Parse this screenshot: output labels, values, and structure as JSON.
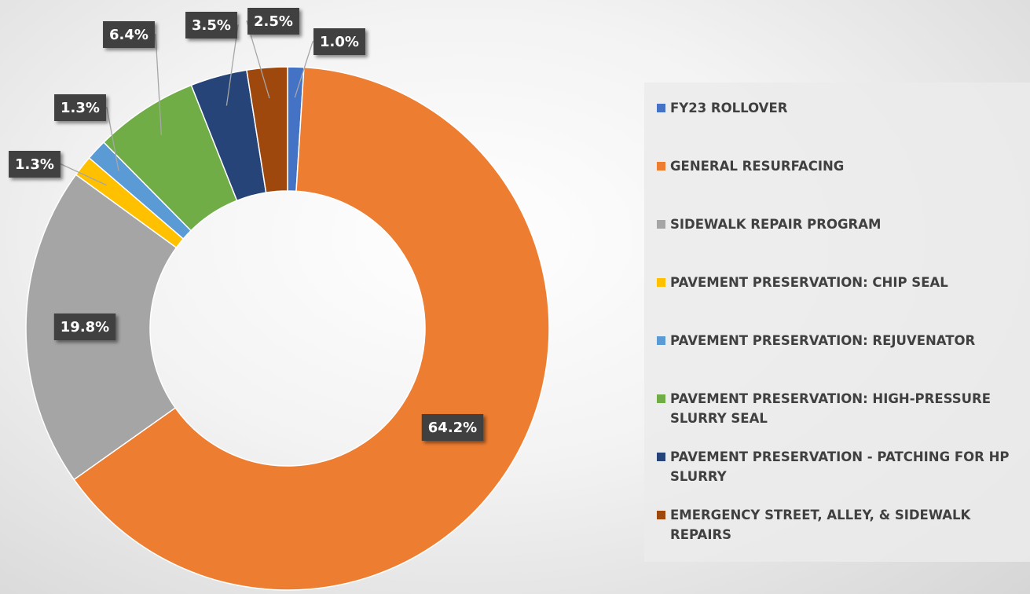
{
  "chart_data": {
    "type": "donut",
    "categories": [
      "FY23 ROLLOVER",
      "GENERAL RESURFACING",
      "SIDEWALK REPAIR PROGRAM",
      "PAVEMENT PRESERVATION: CHIP SEAL",
      "PAVEMENT PRESERVATION: REJUVENATOR",
      "PAVEMENT PRESERVATION: HIGH-PRESSURE SLURRY SEAL",
      "PAVEMENT PRESERVATION - PATCHING FOR HP SLURRY",
      "EMERGENCY STREET, ALLEY, & SIDEWALK REPAIRS"
    ],
    "values": [
      1.0,
      64.2,
      19.8,
      1.3,
      1.3,
      6.4,
      3.5,
      2.5
    ],
    "value_labels": [
      "1.0%",
      "64.2%",
      "19.8%",
      "1.3%",
      "1.3%",
      "6.4%",
      "3.5%",
      "2.5%"
    ],
    "colors": [
      "#4472c4",
      "#ed7d31",
      "#a5a5a5",
      "#ffc000",
      "#5b9bd5",
      "#70ad47",
      "#264478",
      "#9e480e"
    ],
    "legend": "right"
  }
}
